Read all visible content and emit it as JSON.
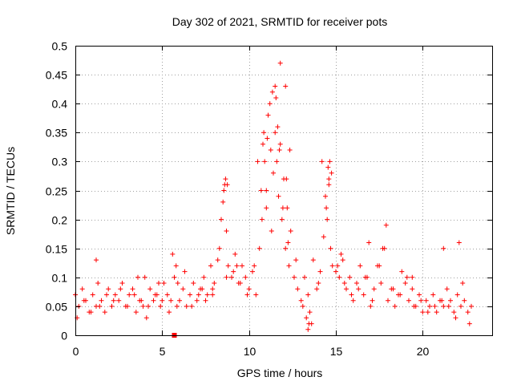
{
  "chart_data": {
    "type": "scatter",
    "title": "Day 302 of 2021, SRMTID for receiver pots",
    "xlabel": "GPS time / hours",
    "ylabel": "SRMTID / TECUs",
    "xlim": [
      0,
      24
    ],
    "ylim": [
      0,
      0.5
    ],
    "x_ticks": [
      0,
      5,
      10,
      15,
      20
    ],
    "x_tick_labels": [
      "0",
      "5",
      "10",
      "15",
      "20"
    ],
    "y_ticks": [
      0,
      0.05,
      0.1,
      0.15,
      0.2,
      0.25,
      0.3,
      0.35,
      0.4,
      0.45,
      0.5
    ],
    "y_tick_labels": [
      "0",
      "0.05",
      "0.1",
      "0.15",
      "0.2",
      "0.25",
      "0.3",
      "0.35",
      "0.4",
      "0.45",
      "0.5"
    ],
    "grid": true,
    "marker": "+",
    "color": "#ff0000",
    "series": [
      {
        "name": "SRMTID",
        "x": [
          0.0,
          0.2,
          0.4,
          0.6,
          0.8,
          1.0,
          1.2,
          1.3,
          1.5,
          1.7,
          1.9,
          2.1,
          2.3,
          2.5,
          2.7,
          2.9,
          3.1,
          3.3,
          3.5,
          3.7,
          3.9,
          4.1,
          4.3,
          4.5,
          4.7,
          4.9,
          5.1,
          5.3,
          5.5,
          5.7,
          5.8,
          6.0,
          6.2,
          6.4,
          6.6,
          6.8,
          7.0,
          7.2,
          7.4,
          7.6,
          7.8,
          8.0,
          8.2,
          8.4,
          8.5,
          8.6,
          8.7,
          8.8,
          9.0,
          9.2,
          9.4,
          9.6,
          9.8,
          10.0,
          10.2,
          10.4,
          10.6,
          10.7,
          10.8,
          10.9,
          11.0,
          11.1,
          11.2,
          11.3,
          11.4,
          11.5,
          11.6,
          11.7,
          11.8,
          11.9,
          12.0,
          12.1,
          12.2,
          12.3,
          12.4,
          12.6,
          12.8,
          13.0,
          13.2,
          13.4,
          13.5,
          13.7,
          13.9,
          14.1,
          14.3,
          14.4,
          14.5,
          14.6,
          14.7,
          14.8,
          15.0,
          15.2,
          15.4,
          15.6,
          15.8,
          16.0,
          16.2,
          16.4,
          16.6,
          16.8,
          17.0,
          17.2,
          17.4,
          17.6,
          17.8,
          18.0,
          18.2,
          18.4,
          18.6,
          18.8,
          19.0,
          19.2,
          19.4,
          19.6,
          19.8,
          20.0,
          20.2,
          20.4,
          20.6,
          20.8,
          21.0,
          21.2,
          21.4,
          21.6,
          21.8,
          22.0,
          22.2,
          22.4,
          22.6,
          22.8,
          0.1,
          0.5,
          0.9,
          1.4,
          1.8,
          2.2,
          2.6,
          3.0,
          3.4,
          3.8,
          4.2,
          4.6,
          5.0,
          5.4,
          5.9,
          6.3,
          6.7,
          7.1,
          7.5,
          7.9,
          8.3,
          8.65,
          9.1,
          9.5,
          9.9,
          10.3,
          10.75,
          11.05,
          11.35,
          11.65,
          11.95,
          12.25,
          12.7,
          13.1,
          13.6,
          14.0,
          14.45,
          14.75,
          15.1,
          15.5,
          15.9,
          16.3,
          16.7,
          17.1,
          17.5,
          17.9,
          18.3,
          18.7,
          19.1,
          19.5,
          19.9,
          20.3,
          20.7,
          21.1,
          21.5,
          21.9,
          22.3,
          22.7,
          1.2,
          3.6,
          4.8,
          5.6,
          7.3,
          7.9,
          8.7,
          9.3,
          10.5,
          11.0,
          11.5,
          11.8,
          12.1,
          13.3,
          14.2,
          14.6,
          15.3,
          16.9,
          17.7,
          19.4,
          21.2,
          22.1,
          5.85,
          8.55,
          8.75,
          10.85,
          11.25,
          11.55,
          11.75,
          12.15,
          12.35,
          14.55,
          14.65,
          13.4,
          13.45,
          4.0
        ],
        "y": [
          0.07,
          0.05,
          0.08,
          0.06,
          0.04,
          0.07,
          0.05,
          0.09,
          0.06,
          0.04,
          0.08,
          0.05,
          0.07,
          0.06,
          0.09,
          0.05,
          0.07,
          0.08,
          0.04,
          0.06,
          0.05,
          0.03,
          0.08,
          0.06,
          0.07,
          0.05,
          0.09,
          0.07,
          0.06,
          0.1,
          0.12,
          0.06,
          0.08,
          0.05,
          0.07,
          0.09,
          0.06,
          0.08,
          0.1,
          0.07,
          0.12,
          0.09,
          0.13,
          0.2,
          0.23,
          0.26,
          0.18,
          0.12,
          0.1,
          0.14,
          0.09,
          0.12,
          0.1,
          0.08,
          0.11,
          0.07,
          0.15,
          0.25,
          0.33,
          0.3,
          0.22,
          0.38,
          0.4,
          0.18,
          0.28,
          0.35,
          0.3,
          0.24,
          0.33,
          0.2,
          0.27,
          0.15,
          0.22,
          0.12,
          0.18,
          0.1,
          0.08,
          0.06,
          0.1,
          0.07,
          0.04,
          0.13,
          0.08,
          0.11,
          0.17,
          0.24,
          0.2,
          0.26,
          0.15,
          0.12,
          0.11,
          0.1,
          0.13,
          0.08,
          0.1,
          0.06,
          0.09,
          0.12,
          0.07,
          0.1,
          0.05,
          0.08,
          0.12,
          0.09,
          0.15,
          0.06,
          0.08,
          0.05,
          0.07,
          0.11,
          0.09,
          0.06,
          0.08,
          0.05,
          0.07,
          0.04,
          0.06,
          0.05,
          0.07,
          0.04,
          0.06,
          0.05,
          0.08,
          0.06,
          0.04,
          0.07,
          0.05,
          0.06,
          0.04,
          0.05,
          0.03,
          0.06,
          0.04,
          0.05,
          0.07,
          0.06,
          0.08,
          0.05,
          0.07,
          0.06,
          0.05,
          0.07,
          0.06,
          0.04,
          0.09,
          0.11,
          0.05,
          0.07,
          0.06,
          0.08,
          0.15,
          0.27,
          0.11,
          0.09,
          0.07,
          0.12,
          0.2,
          0.34,
          0.42,
          0.36,
          0.22,
          0.16,
          0.13,
          0.05,
          0.02,
          0.09,
          0.22,
          0.28,
          0.12,
          0.09,
          0.07,
          0.08,
          0.1,
          0.06,
          0.12,
          0.19,
          0.08,
          0.07,
          0.1,
          0.05,
          0.06,
          0.04,
          0.05,
          0.06,
          0.05,
          0.03,
          0.09,
          0.02,
          0.13,
          0.1,
          0.09,
          0.14,
          0.08,
          0.07,
          0.1,
          0.12,
          0.3,
          0.25,
          0.43,
          0.47,
          0.43,
          0.03,
          0.3,
          0.27,
          0.14,
          0.16,
          0.15,
          0.1,
          0.15,
          0.16,
          0.05,
          0.25,
          0.26,
          0.35,
          0.32,
          0.41,
          0.32,
          0.27,
          0.32,
          0.29,
          0.3,
          0.01,
          0.02,
          0.1
        ]
      }
    ],
    "square_marker": {
      "x": 5.7,
      "y": 0.0
    }
  }
}
